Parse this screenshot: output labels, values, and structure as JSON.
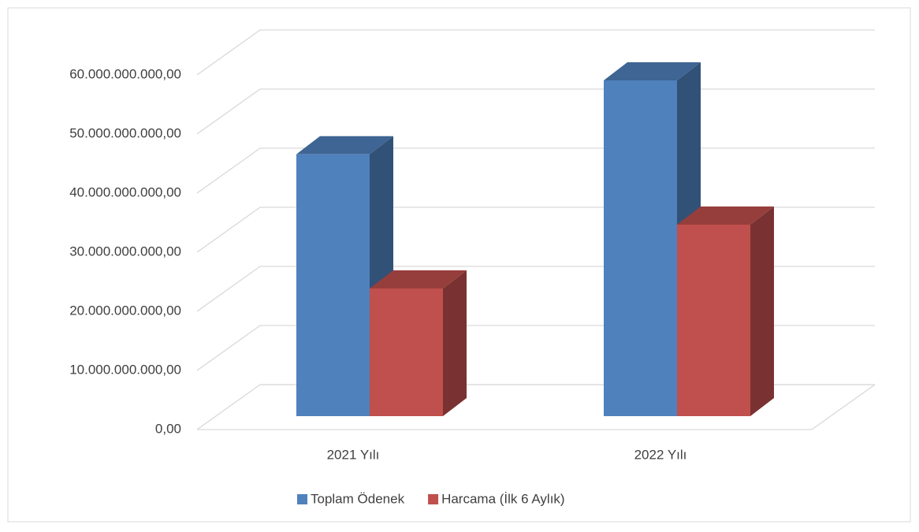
{
  "chart_data": {
    "type": "bar3d",
    "categories": [
      "2021 Yılı",
      "2022 Yılı"
    ],
    "series": [
      {
        "name": "Toplam Ödenek",
        "color": "#4f81bd",
        "values": [
          44300000000,
          56800000000
        ]
      },
      {
        "name": "Harcama (İlk 6 Aylık)",
        "color": "#c0504d",
        "values": [
          21600000000,
          32400000000
        ]
      }
    ],
    "ylim": [
      0,
      60000000000
    ],
    "yticks": [
      {
        "value": 0,
        "label": "0,00"
      },
      {
        "value": 10000000000,
        "label": "10.000.000.000,00"
      },
      {
        "value": 20000000000,
        "label": "20.000.000.000,00"
      },
      {
        "value": 30000000000,
        "label": "30.000.000.000,00"
      },
      {
        "value": 40000000000,
        "label": "40.000.000.000,00"
      },
      {
        "value": 50000000000,
        "label": "50.000.000.000,00"
      },
      {
        "value": 60000000000,
        "label": "60.000.000.000,00"
      }
    ],
    "grid": true,
    "legend": "bottom"
  }
}
